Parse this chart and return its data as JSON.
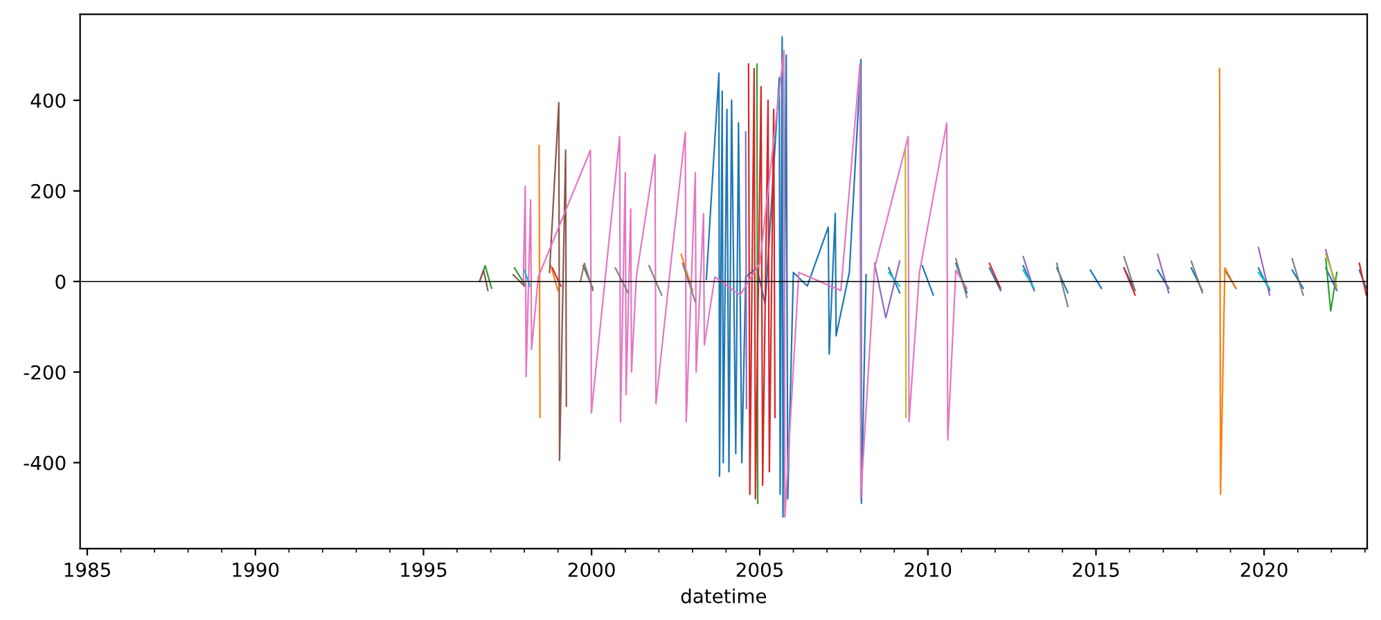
{
  "chart_data": {
    "type": "line",
    "xlabel": "datetime",
    "xlim": [
      "1984-10-15",
      "2023-01-25"
    ],
    "ylim": [
      -590,
      590
    ],
    "yticks": [
      -400,
      -200,
      0,
      200,
      400
    ],
    "xticks": [
      {
        "value": "1985-01-01",
        "label": "1985"
      },
      {
        "value": "1986-01-01",
        "label": null
      },
      {
        "value": "1987-01-01",
        "label": null
      },
      {
        "value": "1988-01-01",
        "label": null
      },
      {
        "value": "1989-01-01",
        "label": null
      },
      {
        "value": "1990-01-01",
        "label": "1990"
      },
      {
        "value": "1991-01-01",
        "label": null
      },
      {
        "value": "1992-01-01",
        "label": null
      },
      {
        "value": "1993-01-01",
        "label": null
      },
      {
        "value": "1994-01-01",
        "label": null
      },
      {
        "value": "1995-01-01",
        "label": "1995"
      },
      {
        "value": "1996-01-01",
        "label": null
      },
      {
        "value": "1997-01-01",
        "label": null
      },
      {
        "value": "1998-01-01",
        "label": null
      },
      {
        "value": "1999-01-01",
        "label": null
      },
      {
        "value": "2000-01-01",
        "label": "2000"
      },
      {
        "value": "2001-01-01",
        "label": null
      },
      {
        "value": "2002-01-01",
        "label": null
      },
      {
        "value": "2003-01-01",
        "label": null
      },
      {
        "value": "2004-01-01",
        "label": null
      },
      {
        "value": "2005-01-01",
        "label": "2005"
      },
      {
        "value": "2006-01-01",
        "label": null
      },
      {
        "value": "2007-01-01",
        "label": null
      },
      {
        "value": "2008-01-01",
        "label": null
      },
      {
        "value": "2009-01-01",
        "label": null
      },
      {
        "value": "2010-01-01",
        "label": "2010"
      },
      {
        "value": "2011-01-01",
        "label": null
      },
      {
        "value": "2012-01-01",
        "label": null
      },
      {
        "value": "2013-01-01",
        "label": null
      },
      {
        "value": "2014-01-01",
        "label": null
      },
      {
        "value": "2015-01-01",
        "label": "2015"
      },
      {
        "value": "2016-01-01",
        "label": null
      },
      {
        "value": "2017-01-01",
        "label": null
      },
      {
        "value": "2018-01-01",
        "label": null
      },
      {
        "value": "2019-01-01",
        "label": null
      },
      {
        "value": "2020-01-01",
        "label": "2020"
      },
      {
        "value": "2021-01-01",
        "label": null
      },
      {
        "value": "2022-01-01",
        "label": null
      },
      {
        "value": "2023-01-01",
        "label": null
      }
    ],
    "ref_lines": [
      {
        "axis": "y",
        "value": 0,
        "color": "#000000"
      }
    ],
    "series": [
      {
        "color": "#1f77b4",
        "x": [
          "2003-06-01",
          "2003-10-15",
          "2003-10-22",
          "2003-11-20",
          "2003-12-01",
          "2004-01-10",
          "2004-02-01",
          "2004-03-01",
          "2004-04-15",
          "2004-05-15",
          "2004-06-20",
          "2004-08-01",
          "2004-12-01",
          "2005-03-01",
          "2005-08-01",
          "2005-08-10",
          "2005-09-01",
          "2005-09-10",
          "2005-10-15",
          "2005-11-01",
          "2006-01-01",
          "2006-06-01",
          "2007-01-15",
          "2007-01-25",
          "2007-04-01",
          "2007-04-10",
          "2007-09-01",
          "2008-01-05",
          "2008-01-10",
          "2008-03-01",
          "2008-06-01",
          "2008-11-01",
          "2009-03-01",
          "2009-06-15",
          "2009-11-01",
          "2010-03-01",
          "2010-06-15",
          "2010-11-01",
          "2011-03-01",
          "2011-06-15",
          "2011-11-01",
          "2012-03-01",
          "2012-06-15",
          "2012-11-01",
          "2013-03-01",
          "2013-06-15",
          "2013-11-01",
          "2014-03-01",
          "2014-06-15",
          "2014-11-01",
          "2015-03-01",
          "2015-06-15",
          "2015-11-01",
          "2016-03-01",
          "2016-06-15",
          "2016-11-01",
          "2017-03-01",
          "2017-06-15",
          "2017-11-01",
          "2018-03-01",
          "2018-06-15",
          "2018-11-01",
          "2019-03-01",
          "2019-06-15",
          "2019-11-01",
          "2020-03-01",
          "2020-06-15",
          "2020-11-01",
          "2021-03-01",
          "2021-06-15",
          "2021-11-01",
          "2022-03-01",
          "2022-06-15",
          "2022-11-01",
          "2023-01-15"
        ],
        "values": [
          5,
          460,
          -430,
          420,
          -400,
          380,
          -420,
          400,
          -380,
          350,
          -400,
          10,
          30,
          -50,
          450,
          -470,
          540,
          -520,
          500,
          -480,
          20,
          -10,
          120,
          -160,
          150,
          -120,
          20,
          490,
          -490,
          15,
          null,
          30,
          -25,
          null,
          35,
          -30,
          null,
          40,
          -25,
          null,
          30,
          -20,
          null,
          35,
          -20,
          null,
          30,
          -25,
          null,
          25,
          -15,
          null,
          30,
          -20,
          null,
          25,
          -15,
          null,
          30,
          -20,
          null,
          25,
          -15,
          null,
          30,
          -20,
          null,
          25,
          -15,
          null,
          30,
          -20,
          null,
          25,
          -15
        ]
      },
      {
        "color": "#ff7f0e",
        "x": [
          "1998-06-10",
          "1998-06-20",
          "1998-08-01",
          "1998-10-15",
          "1999-01-01",
          "1999-03-01",
          "2002-09-01",
          "2003-01-01",
          "2003-03-01",
          "2018-09-05",
          "2018-09-15",
          "2018-11-01",
          "2019-03-01"
        ],
        "values": [
          300,
          -300,
          null,
          35,
          -20,
          null,
          60,
          -20,
          null,
          470,
          -470,
          30,
          -15
        ]
      },
      {
        "color": "#2ca02c",
        "x": [
          "1996-09-01",
          "1996-11-01",
          "1997-01-10",
          "1997-03-01",
          "1997-09-15",
          "1998-01-15",
          "1998-03-01",
          "2004-12-01",
          "2004-12-10",
          "2005-02-01",
          "2021-11-01",
          "2021-12-25",
          "2022-03-01"
        ],
        "values": [
          0,
          35,
          -15,
          null,
          30,
          -10,
          null,
          480,
          -490,
          null,
          50,
          -65,
          20
        ]
      },
      {
        "color": "#d62728",
        "x": [
          "1998-11-01",
          "1999-02-01",
          "1999-04-01",
          "2004-09-01",
          "2004-09-15",
          "2004-11-01",
          "2004-11-15",
          "2005-01-15",
          "2005-02-01",
          "2005-04-01",
          "2005-04-15",
          "2005-06-01",
          "2005-06-15",
          "2005-08-01",
          "2011-11-01",
          "2012-03-01",
          "2012-06-15",
          "2015-11-01",
          "2016-03-01",
          "2016-06-15",
          "2022-11-01",
          "2023-01-15"
        ],
        "values": [
          30,
          -10,
          null,
          480,
          -470,
          470,
          -480,
          430,
          -450,
          400,
          -420,
          380,
          -300,
          null,
          40,
          -15,
          null,
          30,
          -30,
          null,
          40,
          -30
        ]
      },
      {
        "color": "#9467bd",
        "x": [
          "2004-08-01",
          "2004-08-10",
          "2004-10-01",
          "2008-06-01",
          "2008-10-01",
          "2009-03-01",
          "2009-06-15",
          "2012-11-01",
          "2013-03-01",
          "2013-06-15",
          "2016-11-01",
          "2017-03-01",
          "2017-06-15",
          "2019-11-01",
          "2020-03-01",
          "2020-06-15",
          "2021-11-01",
          "2022-03-01"
        ],
        "values": [
          330,
          -280,
          null,
          40,
          -80,
          45,
          null,
          55,
          -20,
          null,
          60,
          -25,
          null,
          75,
          -30,
          null,
          70,
          -20
        ]
      },
      {
        "color": "#8c564b",
        "x": [
          "1996-09-01",
          "1996-10-15",
          "1996-12-01",
          "1997-02-01",
          "1997-09-01",
          "1998-01-01",
          "1998-03-01",
          "1998-10-01",
          "1999-01-10",
          "1999-01-18",
          "1999-03-25",
          "1999-04-02",
          "1999-05-01",
          "1999-10-01",
          "2000-01-15"
        ],
        "values": [
          0,
          25,
          -20,
          null,
          15,
          -10,
          null,
          20,
          395,
          -395,
          290,
          -275,
          null,
          35,
          -15
        ]
      },
      {
        "color": "#e377c2",
        "x": [
          "1997-12-20",
          "1998-01-10",
          "1998-01-20",
          "1998-03-10",
          "1998-03-20",
          "1998-06-01",
          "1999-12-20",
          "1999-12-30",
          "2000-06-01",
          "2000-11-01",
          "2000-11-10",
          "2001-01-01",
          "2001-01-10",
          "2001-03-01",
          "2001-03-10",
          "2001-05-01",
          "2001-11-20",
          "2001-11-30",
          "2002-05-01",
          "2002-10-15",
          "2002-10-25",
          "2003-02-01",
          "2003-02-10",
          "2003-05-01",
          "2003-05-10",
          "2003-09-01",
          "2004-06-01",
          "2005-01-01",
          "2005-09-20",
          "2005-10-01",
          "2006-03-01",
          "2007-06-01",
          "2007-12-25",
          "2008-01-03",
          "2008-06-01",
          "2009-06-01",
          "2009-06-10",
          "2009-10-01",
          "2010-07-25",
          "2010-08-05",
          "2010-11-01",
          "2011-03-01"
        ],
        "values": [
          0,
          210,
          -210,
          180,
          -150,
          10,
          290,
          -290,
          15,
          320,
          -310,
          240,
          -250,
          160,
          -200,
          10,
          280,
          -270,
          20,
          330,
          -310,
          240,
          -200,
          150,
          -140,
          10,
          -30,
          40,
          510,
          -520,
          20,
          -20,
          480,
          -480,
          30,
          320,
          -310,
          20,
          350,
          -350,
          25,
          -15
        ]
      },
      {
        "color": "#7f7f7f",
        "x": [
          "1999-09-01",
          "1999-10-15",
          "2000-01-15",
          "2000-03-01",
          "2000-09-15",
          "2001-02-01",
          "2001-04-01",
          "2001-09-15",
          "2002-02-01",
          "2002-04-01",
          "2002-09-15",
          "2003-02-01",
          "2003-04-01",
          "2010-11-01",
          "2011-03-01",
          "2011-06-15",
          "2013-11-01",
          "2014-03-01",
          "2014-06-15",
          "2015-11-01",
          "2016-03-01",
          "2016-06-15",
          "2017-11-01",
          "2018-03-01",
          "2018-06-15",
          "2020-11-01",
          "2021-03-01"
        ],
        "values": [
          0,
          40,
          -20,
          null,
          30,
          -25,
          null,
          35,
          -30,
          null,
          40,
          -45,
          null,
          50,
          -35,
          null,
          40,
          -55,
          null,
          55,
          -20,
          null,
          45,
          -25,
          null,
          50,
          -30
        ]
      },
      {
        "color": "#bcbd22",
        "x": [
          "2009-05-01",
          "2009-05-08",
          "2009-07-01",
          "2021-11-01",
          "2022-03-01"
        ],
        "values": [
          290,
          -300,
          null,
          60,
          -10
        ]
      },
      {
        "color": "#17becf",
        "x": [
          "1998-01-01",
          "1998-03-01",
          "1998-05-01",
          "2008-11-01",
          "2009-03-01",
          "2009-06-15",
          "2012-11-01",
          "2013-03-01",
          "2013-06-15",
          "2019-11-01",
          "2020-03-01"
        ],
        "values": [
          25,
          -10,
          null,
          20,
          -10,
          null,
          25,
          -15,
          null,
          20,
          -15
        ]
      }
    ]
  }
}
